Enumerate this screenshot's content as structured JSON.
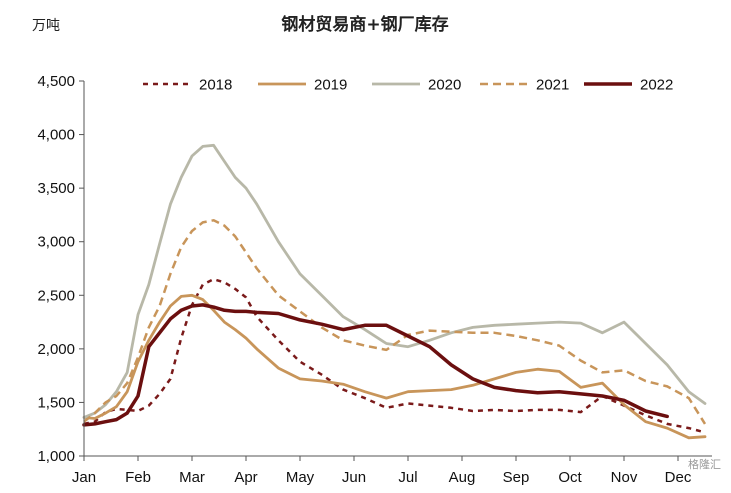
{
  "chart_data": {
    "type": "line",
    "title": "钢材贸易商+钢厂库存",
    "unit_label": "万吨",
    "xlabel": "",
    "ylabel": "",
    "ylim": [
      1000,
      4500
    ],
    "yticks": [
      1000,
      1500,
      2000,
      2500,
      3000,
      3500,
      4000,
      4500
    ],
    "ytick_labels": [
      "1,000",
      "1,500",
      "2,000",
      "2,500",
      "3,000",
      "3,500",
      "4,000",
      "4,500"
    ],
    "xlim": [
      0,
      11.5
    ],
    "categories": [
      "Jan",
      "Feb",
      "Mar",
      "Apr",
      "May",
      "Jun",
      "Jul",
      "Aug",
      "Sep",
      "Oct",
      "Nov",
      "Dec"
    ],
    "grid": false,
    "legend_position": "top",
    "watermark": "格隆汇",
    "series": [
      {
        "name": "2018",
        "color": "#7a1a1a",
        "dash": "dotted",
        "width": 2.5,
        "x": [
          0,
          0.2,
          0.4,
          0.6,
          0.8,
          1.0,
          1.2,
          1.4,
          1.6,
          1.8,
          2.0,
          2.2,
          2.4,
          2.6,
          2.8,
          3.0,
          3.2,
          3.6,
          4.0,
          4.4,
          4.8,
          5.2,
          5.6,
          6.0,
          6.4,
          6.8,
          7.2,
          7.6,
          8.0,
          8.4,
          8.8,
          9.2,
          9.6,
          10.0,
          10.4,
          10.8,
          11.2,
          11.5
        ],
        "y": [
          1300,
          1320,
          1410,
          1440,
          1430,
          1420,
          1470,
          1580,
          1720,
          2100,
          2410,
          2600,
          2650,
          2620,
          2560,
          2480,
          2300,
          2080,
          1880,
          1760,
          1620,
          1540,
          1450,
          1490,
          1470,
          1450,
          1420,
          1430,
          1420,
          1430,
          1430,
          1410,
          1560,
          1470,
          1380,
          1300,
          1260,
          1220
        ]
      },
      {
        "name": "2019",
        "color": "#c8955a",
        "dash": "solid",
        "width": 2.8,
        "x": [
          0,
          0.2,
          0.4,
          0.6,
          0.8,
          1.0,
          1.2,
          1.4,
          1.6,
          1.8,
          2.0,
          2.2,
          2.4,
          2.6,
          2.8,
          3.0,
          3.2,
          3.6,
          4.0,
          4.4,
          4.8,
          5.2,
          5.6,
          6.0,
          6.4,
          6.8,
          7.2,
          7.6,
          8.0,
          8.4,
          8.8,
          9.2,
          9.6,
          10.0,
          10.4,
          10.8,
          11.2,
          11.5
        ],
        "y": [
          1360,
          1350,
          1400,
          1460,
          1600,
          1880,
          2080,
          2250,
          2400,
          2490,
          2500,
          2460,
          2360,
          2250,
          2180,
          2100,
          2000,
          1820,
          1720,
          1700,
          1670,
          1600,
          1540,
          1600,
          1610,
          1620,
          1660,
          1720,
          1780,
          1810,
          1790,
          1640,
          1680,
          1480,
          1320,
          1260,
          1170,
          1180
        ]
      },
      {
        "name": "2020",
        "color": "#b8b8a8",
        "dash": "solid",
        "width": 2.8,
        "x": [
          0,
          0.2,
          0.4,
          0.6,
          0.8,
          1.0,
          1.2,
          1.4,
          1.6,
          1.8,
          2.0,
          2.2,
          2.4,
          2.6,
          2.8,
          3.0,
          3.2,
          3.6,
          4.0,
          4.4,
          4.8,
          5.2,
          5.6,
          6.0,
          6.4,
          6.8,
          7.2,
          7.6,
          8.0,
          8.4,
          8.8,
          9.2,
          9.6,
          10.0,
          10.4,
          10.8,
          11.2,
          11.5
        ],
        "y": [
          1360,
          1400,
          1480,
          1600,
          1780,
          2320,
          2600,
          2980,
          3350,
          3600,
          3800,
          3890,
          3900,
          3750,
          3600,
          3500,
          3350,
          3000,
          2700,
          2500,
          2300,
          2180,
          2050,
          2020,
          2080,
          2150,
          2200,
          2220,
          2230,
          2240,
          2250,
          2240,
          2150,
          2250,
          2050,
          1850,
          1600,
          1490
        ]
      },
      {
        "name": "2021",
        "color": "#c8955a",
        "dash": "dashed",
        "width": 2.5,
        "x": [
          0,
          0.2,
          0.4,
          0.6,
          0.8,
          1.0,
          1.2,
          1.4,
          1.6,
          1.8,
          2.0,
          2.2,
          2.4,
          2.6,
          2.8,
          3.0,
          3.2,
          3.6,
          4.0,
          4.4,
          4.8,
          5.2,
          5.6,
          6.0,
          6.4,
          6.8,
          7.2,
          7.6,
          8.0,
          8.4,
          8.8,
          9.2,
          9.6,
          10.0,
          10.4,
          10.8,
          11.2,
          11.5
        ],
        "y": [
          1320,
          1400,
          1500,
          1560,
          1680,
          1920,
          2200,
          2400,
          2700,
          2950,
          3100,
          3180,
          3200,
          3150,
          3050,
          2900,
          2750,
          2500,
          2350,
          2200,
          2080,
          2030,
          1990,
          2130,
          2170,
          2160,
          2150,
          2150,
          2120,
          2080,
          2030,
          1890,
          1780,
          1800,
          1700,
          1650,
          1540,
          1300
        ]
      },
      {
        "name": "2022",
        "color": "#6b0f0f",
        "dash": "solid",
        "width": 3.5,
        "x": [
          0,
          0.2,
          0.4,
          0.6,
          0.8,
          1.0,
          1.2,
          1.4,
          1.6,
          1.8,
          2.0,
          2.2,
          2.4,
          2.6,
          2.8,
          3.0,
          3.2,
          3.6,
          4.0,
          4.4,
          4.8,
          5.2,
          5.6,
          6.0,
          6.4,
          6.8,
          7.2,
          7.6,
          8.0,
          8.4,
          8.8,
          9.2,
          9.6,
          10.0,
          10.4,
          10.8
        ],
        "y": [
          1290,
          1300,
          1320,
          1340,
          1400,
          1560,
          2020,
          2150,
          2280,
          2360,
          2400,
          2410,
          2390,
          2360,
          2350,
          2350,
          2340,
          2330,
          2270,
          2230,
          2180,
          2220,
          2220,
          2120,
          2020,
          1850,
          1720,
          1640,
          1610,
          1590,
          1600,
          1580,
          1560,
          1520,
          1420,
          1370
        ]
      }
    ]
  }
}
